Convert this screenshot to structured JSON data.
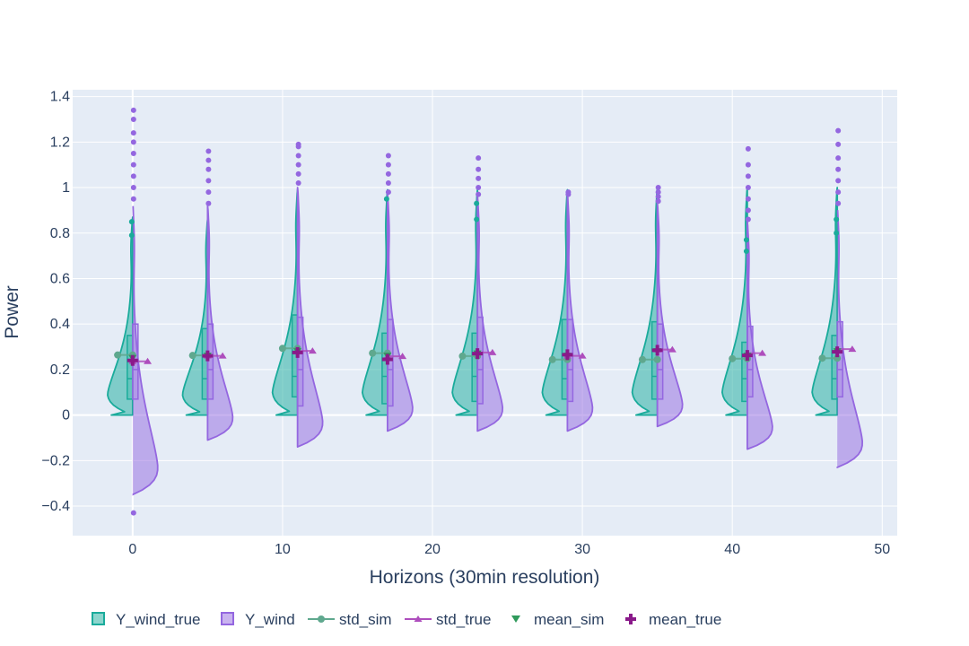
{
  "chart_data": {
    "type": "violin",
    "xlabel": "Horizons (30min resolution)",
    "ylabel": "Power",
    "xlim": [
      -4,
      51
    ],
    "ylim": [
      -0.53,
      1.43
    ],
    "x_ticks": [
      0,
      10,
      20,
      30,
      40,
      50
    ],
    "y_ticks": [
      -0.4,
      -0.2,
      0,
      0.2,
      0.4,
      0.6,
      0.8,
      1,
      1.2,
      1.4
    ],
    "y_tick_labels": [
      "−0.4",
      "−0.2",
      "0",
      "0.2",
      "0.4",
      "0.6",
      "0.8",
      "1",
      "1.2",
      "1.4"
    ],
    "grid": true,
    "legend_position": "bottom",
    "horizons": [
      0,
      5,
      11,
      17,
      23,
      29,
      35,
      41,
      47
    ],
    "series": [
      {
        "name": "Y_wind_true",
        "color": "#1aab9b",
        "side": "negative",
        "violins": [
          {
            "x": 0,
            "min": 0,
            "max": 0.87,
            "q1": 0.07,
            "median": 0.16,
            "q3": 0.35,
            "outliers": [
              0.79,
              0.85
            ]
          },
          {
            "x": 5,
            "min": 0,
            "max": 0.86,
            "q1": 0.07,
            "median": 0.16,
            "q3": 0.38,
            "outliers": []
          },
          {
            "x": 11,
            "min": 0,
            "max": 0.99,
            "q1": 0.08,
            "median": 0.17,
            "q3": 0.44,
            "outliers": []
          },
          {
            "x": 17,
            "min": 0,
            "max": 0.99,
            "q1": 0.05,
            "median": 0.17,
            "q3": 0.36,
            "outliers": [
              0.95
            ]
          },
          {
            "x": 23,
            "min": 0,
            "max": 0.99,
            "q1": 0.06,
            "median": 0.17,
            "q3": 0.36,
            "outliers": [
              0.86,
              0.93
            ]
          },
          {
            "x": 29,
            "min": 0,
            "max": 0.99,
            "q1": 0.07,
            "median": 0.16,
            "q3": 0.42,
            "outliers": []
          },
          {
            "x": 35,
            "min": 0,
            "max": 1.0,
            "q1": 0.07,
            "median": 0.17,
            "q3": 0.41,
            "outliers": []
          },
          {
            "x": 41,
            "min": 0,
            "max": 1.0,
            "q1": 0.06,
            "median": 0.16,
            "q3": 0.32,
            "outliers": [
              0.72,
              0.77
            ]
          },
          {
            "x": 47,
            "min": 0,
            "max": 1.0,
            "q1": 0.07,
            "median": 0.16,
            "q3": 0.35,
            "outliers": [
              0.8,
              0.86
            ]
          }
        ]
      },
      {
        "name": "Y_wind",
        "color": "#9467e0",
        "side": "positive",
        "violins": [
          {
            "x": 0,
            "min": -0.35,
            "max": 0.94,
            "q1": 0.07,
            "median": 0.2,
            "q3": 0.4,
            "outliers": [
              -0.43,
              0.95,
              1.0,
              1.05,
              1.1,
              1.15,
              1.2,
              1.24,
              1.3,
              1.34
            ]
          },
          {
            "x": 5,
            "min": -0.11,
            "max": 0.92,
            "q1": 0.07,
            "median": 0.2,
            "q3": 0.4,
            "outliers": [
              0.93,
              0.98,
              1.03,
              1.08,
              1.12,
              1.16
            ]
          },
          {
            "x": 11,
            "min": -0.14,
            "max": 1.0,
            "q1": 0.04,
            "median": 0.2,
            "q3": 0.43,
            "outliers": [
              1.02,
              1.06,
              1.1,
              1.14,
              1.18,
              1.19
            ]
          },
          {
            "x": 17,
            "min": -0.07,
            "max": 0.97,
            "q1": 0.04,
            "median": 0.2,
            "q3": 0.42,
            "outliers": [
              0.98,
              1.02,
              1.06,
              1.1,
              1.14
            ]
          },
          {
            "x": 23,
            "min": -0.07,
            "max": 0.96,
            "q1": 0.05,
            "median": 0.2,
            "q3": 0.43,
            "outliers": [
              0.97,
              1.0,
              1.04,
              1.08,
              1.13
            ]
          },
          {
            "x": 29,
            "min": -0.07,
            "max": 0.97,
            "q1": 0.06,
            "median": 0.2,
            "q3": 0.42,
            "outliers": [
              0.97,
              0.98
            ]
          },
          {
            "x": 35,
            "min": -0.05,
            "max": 0.93,
            "q1": 0.07,
            "median": 0.2,
            "q3": 0.4,
            "outliers": [
              0.94,
              0.96,
              0.98,
              1.0
            ]
          },
          {
            "x": 41,
            "min": -0.15,
            "max": 0.85,
            "q1": 0.08,
            "median": 0.2,
            "q3": 0.39,
            "outliers": [
              0.86,
              0.9,
              0.95,
              1.0,
              1.05,
              1.1,
              1.17
            ]
          },
          {
            "x": 47,
            "min": -0.23,
            "max": 0.92,
            "q1": 0.08,
            "median": 0.2,
            "q3": 0.41,
            "outliers": [
              0.93,
              0.98,
              1.03,
              1.08,
              1.13,
              1.19,
              1.25
            ]
          }
        ]
      },
      {
        "name": "std_sim",
        "color": "#5fa88e",
        "type": "line",
        "marker": "circle",
        "pairs": [
          [
            [
              -1,
              0.264
            ],
            [
              0,
              0.264
            ]
          ],
          [
            [
              4,
              0.262
            ],
            [
              5,
              0.262
            ]
          ],
          [
            [
              10,
              0.293
            ],
            [
              11,
              0.293
            ]
          ],
          [
            [
              16,
              0.272
            ],
            [
              17,
              0.272
            ]
          ],
          [
            [
              22,
              0.259
            ],
            [
              23,
              0.259
            ]
          ],
          [
            [
              28,
              0.244
            ],
            [
              29,
              0.244
            ]
          ],
          [
            [
              34,
              0.244
            ],
            [
              35,
              0.244
            ]
          ],
          [
            [
              40,
              0.248
            ],
            [
              41,
              0.248
            ]
          ],
          [
            [
              46,
              0.25
            ],
            [
              47,
              0.25
            ]
          ]
        ]
      },
      {
        "name": "std_true",
        "color": "#ae4ebd",
        "type": "line",
        "marker": "triangle-up",
        "pairs": [
          [
            [
              0,
              0.236
            ],
            [
              1,
              0.236
            ]
          ],
          [
            [
              5,
              0.26
            ],
            [
              6,
              0.26
            ]
          ],
          [
            [
              11,
              0.282
            ],
            [
              12,
              0.282
            ]
          ],
          [
            [
              17,
              0.258
            ],
            [
              18,
              0.258
            ]
          ],
          [
            [
              23,
              0.275
            ],
            [
              24,
              0.275
            ]
          ],
          [
            [
              29,
              0.26
            ],
            [
              30,
              0.26
            ]
          ],
          [
            [
              35,
              0.288
            ],
            [
              36,
              0.288
            ]
          ],
          [
            [
              41,
              0.272
            ],
            [
              42,
              0.272
            ]
          ],
          [
            [
              47,
              0.29
            ],
            [
              48,
              0.29
            ]
          ]
        ]
      },
      {
        "name": "mean_sim",
        "color": "#2f9a5b",
        "type": "scatter",
        "marker": "triangle-down",
        "x": [
          0,
          5,
          11,
          17,
          23,
          29,
          35,
          41,
          47
        ],
        "y": [
          0.25,
          0.26,
          0.28,
          0.26,
          0.27,
          0.26,
          0.28,
          0.26,
          0.28
        ]
      },
      {
        "name": "mean_true",
        "color": "#8a1a8a",
        "type": "scatter",
        "marker": "cross",
        "x": [
          0,
          5,
          11,
          17,
          23,
          29,
          35,
          41,
          47
        ],
        "y": [
          0.24,
          0.26,
          0.275,
          0.245,
          0.27,
          0.265,
          0.285,
          0.262,
          0.278
        ]
      }
    ]
  }
}
